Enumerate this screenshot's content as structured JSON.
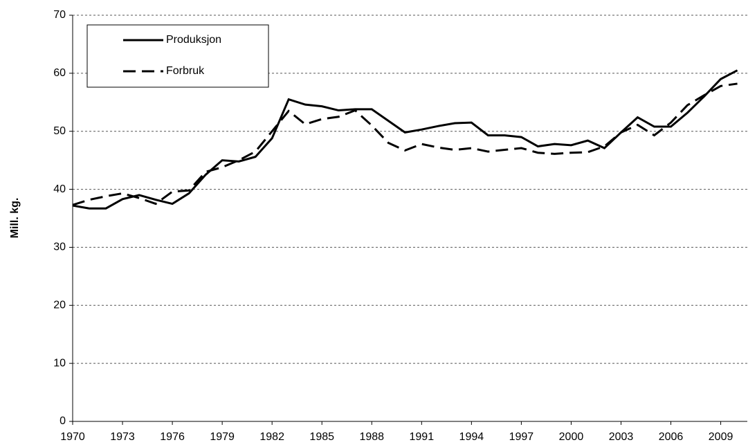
{
  "chart_data": {
    "type": "line",
    "ylabel": "Mill. kg.",
    "x": [
      1970,
      1971,
      1972,
      1973,
      1974,
      1975,
      1976,
      1977,
      1978,
      1979,
      1980,
      1981,
      1982,
      1983,
      1984,
      1985,
      1986,
      1987,
      1988,
      1989,
      1990,
      1991,
      1992,
      1993,
      1994,
      1995,
      1996,
      1997,
      1998,
      1999,
      2000,
      2001,
      2002,
      2003,
      2004,
      2005,
      2006,
      2007,
      2008,
      2009,
      2010
    ],
    "series": [
      {
        "name": "Produksjon",
        "color": "#000000",
        "style": "solid",
        "values": [
          37.2,
          36.7,
          36.7,
          38.3,
          39.0,
          38.2,
          37.5,
          39.3,
          42.5,
          45.0,
          44.8,
          45.6,
          48.8,
          55.5,
          54.6,
          54.3,
          53.6,
          53.8,
          53.8,
          51.8,
          49.8,
          50.3,
          50.9,
          51.4,
          51.5,
          49.3,
          49.3,
          49.0,
          47.4,
          47.8,
          47.6,
          48.4,
          47.1,
          49.8,
          52.4,
          50.8,
          50.8,
          53.2,
          56.0,
          59.0,
          60.5
        ]
      },
      {
        "name": "Forbruk",
        "color": "#000000",
        "style": "dashed",
        "values": [
          37.3,
          38.2,
          38.8,
          39.3,
          38.5,
          37.5,
          39.6,
          39.8,
          43.0,
          43.8,
          45.0,
          46.5,
          50.0,
          53.5,
          51.2,
          52.1,
          52.5,
          53.6,
          51.0,
          48.0,
          46.7,
          47.8,
          47.2,
          46.8,
          47.1,
          46.5,
          46.8,
          47.1,
          46.3,
          46.1,
          46.3,
          46.4,
          47.4,
          49.8,
          51.1,
          49.3,
          51.5,
          54.5,
          56.2,
          57.8,
          58.2
        ]
      }
    ],
    "xlim": [
      1970,
      2010.6
    ],
    "xticks": [
      1970,
      1973,
      1976,
      1979,
      1982,
      1985,
      1988,
      1991,
      1994,
      1997,
      2000,
      2003,
      2006,
      2009
    ],
    "ylim": [
      0,
      70
    ],
    "yticks": [
      0,
      10,
      20,
      30,
      40,
      50,
      60,
      70
    ],
    "grid": true,
    "legend": "upper left"
  }
}
